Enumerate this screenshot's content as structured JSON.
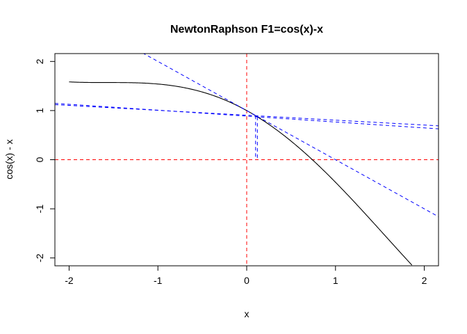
{
  "chart_data": {
    "type": "line",
    "title": "NewtonRaphson F1=cos(x)-x",
    "xlabel": "x",
    "ylabel": "cos(x) - x",
    "xlim": [
      -2.16,
      2.16
    ],
    "ylim": [
      -2.16,
      2.16
    ],
    "x_ticks": [
      -2,
      -1,
      0,
      1,
      2
    ],
    "y_ticks": [
      -2,
      -1,
      0,
      1,
      2
    ],
    "x_tick_labels": [
      "-2",
      "-1",
      "0",
      "1",
      "2"
    ],
    "y_tick_labels": [
      "-2",
      "-1",
      "0",
      "1",
      "2"
    ],
    "grid": false,
    "function": {
      "expression": "cos(x) - x",
      "x_range": [
        -2,
        1.86
      ],
      "color": "#000000"
    },
    "reference_lines": [
      {
        "orientation": "vertical",
        "x": 0,
        "color": "#ff0000",
        "dash": true
      },
      {
        "orientation": "horizontal",
        "y": 0,
        "color": "#ff0000",
        "dash": true
      }
    ],
    "iterations": [
      {
        "x0": 0,
        "y0": 1,
        "x1": 1,
        "color": "#0000ff"
      },
      {
        "x0": 0.1,
        "y0": 0.895,
        "x1": 0.1,
        "color": "#0000ff"
      },
      {
        "x0": 0.12,
        "y0": 0.873,
        "x1": 0.12,
        "color": "#0000ff"
      }
    ],
    "tangents": [
      {
        "point": [
          0,
          1
        ],
        "slope": -1,
        "color": "#0000ff",
        "dash": true
      },
      {
        "point": [
          0.1,
          0.895
        ],
        "slope": -0.1,
        "color": "#0000ff",
        "dash": true
      },
      {
        "point": [
          0.12,
          0.873
        ],
        "slope": -0.12,
        "color": "#0000ff",
        "dash": true
      }
    ],
    "colors": {
      "curve": "#000000",
      "reference": "#ff0000",
      "newton": "#0000ff"
    }
  }
}
